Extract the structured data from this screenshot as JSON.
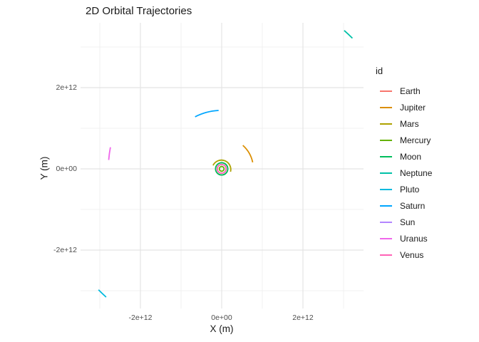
{
  "chart_data": {
    "type": "line",
    "title": "2D Orbital Trajectories",
    "xlabel": "X (m)",
    "ylabel": "Y (m)",
    "xlim": [
      -3500000000000.0,
      3500000000000.0
    ],
    "ylim": [
      -3600000000000.0,
      3600000000000.0
    ],
    "grid": true,
    "grid_major_color": "#E4E4E4",
    "grid_minor_color": "#F0F0F0",
    "background_color": "#FFFFFF",
    "tick_text_color": "#4D4D4D",
    "legend_title": "id",
    "legend_position": "right",
    "series": [
      {
        "name": "Earth",
        "color": "#F8766D",
        "radius_m": 149600000000.0,
        "arc_start_deg": 0,
        "arc_end_deg": 360
      },
      {
        "name": "Jupiter",
        "color": "#DB8E00",
        "radius_m": 780000000000.0,
        "arc_start_deg": 12,
        "arc_end_deg": 48
      },
      {
        "name": "Mars",
        "color": "#AEA200",
        "radius_m": 229000000000.0,
        "arc_start_deg": -18,
        "arc_end_deg": 158
      },
      {
        "name": "Mercury",
        "color": "#64B200",
        "radius_m": 58000000000.0,
        "arc_start_deg": 0,
        "arc_end_deg": 360
      },
      {
        "name": "Moon",
        "color": "#00BD5C",
        "radius_m": 150400000000.0,
        "arc_start_deg": 0,
        "arc_end_deg": 360
      },
      {
        "name": "Neptune",
        "color": "#00C1A7",
        "radius_m": 4550000000000.0,
        "arc_start_deg": 45,
        "arc_end_deg": 48.5
      },
      {
        "name": "Pluto",
        "color": "#00BADE",
        "radius_m": 4250000000000.0,
        "arc_start_deg": 224.5,
        "arc_end_deg": 228
      },
      {
        "name": "Saturn",
        "color": "#00A6FF",
        "radius_m": 1440000000000.0,
        "arc_start_deg": 93,
        "arc_end_deg": 117
      },
      {
        "name": "Sun",
        "color": "#B385FF",
        "radius_m": 0,
        "arc_start_deg": 0,
        "arc_end_deg": 0
      },
      {
        "name": "Uranus",
        "color": "#EF67EB",
        "radius_m": 2790000000000.0,
        "arc_start_deg": 169,
        "arc_end_deg": 175.5
      },
      {
        "name": "Venus",
        "color": "#FF63B6",
        "radius_m": 108000000000.0,
        "arc_start_deg": 0,
        "arc_end_deg": 360
      }
    ]
  },
  "axes": {
    "x": {
      "title": "X (m)",
      "ticks": [
        {
          "label": "-2e+12",
          "value": -2000000000000.0
        },
        {
          "label": "0e+00",
          "value": 0
        },
        {
          "label": "2e+12",
          "value": 2000000000000.0
        }
      ],
      "minor": [
        -3000000000000.0,
        -1000000000000.0,
        1000000000000.0,
        3000000000000.0
      ]
    },
    "y": {
      "title": "Y (m)",
      "ticks": [
        {
          "label": "2e+12",
          "value": 2000000000000.0
        },
        {
          "label": "0e+00",
          "value": 0
        },
        {
          "label": "-2e+12",
          "value": -2000000000000.0
        }
      ],
      "minor": [
        3000000000000.0,
        1000000000000.0,
        -1000000000000.0,
        -3000000000000.0
      ]
    }
  }
}
